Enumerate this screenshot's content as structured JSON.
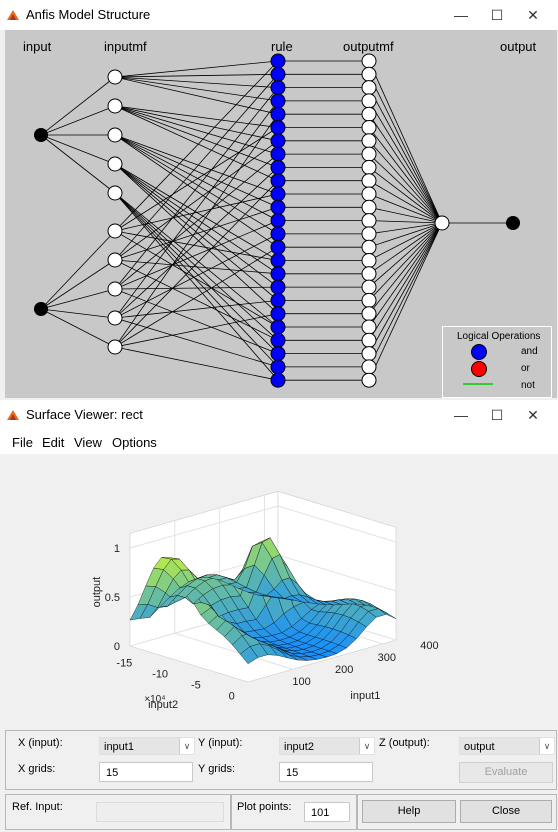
{
  "anfis": {
    "title": "Anfis Model Structure",
    "col_input": "input",
    "col_inputmf": "inputmf",
    "col_rule": "rule",
    "col_outputmf": "outputmf",
    "col_output": "output",
    "legend": {
      "title": "Logical Operations",
      "and": "and",
      "or": "or",
      "not": "not"
    },
    "structure": {
      "inputs": 2,
      "inputmf_per_input": 5,
      "rules": 25,
      "outputmf": 25,
      "outputs": 1
    },
    "colors": {
      "rule_node": "#0000ff",
      "or_node": "#ff0000",
      "not_line": "#33cc33",
      "background": "#c8c8c8"
    }
  },
  "surface": {
    "title": "Surface Viewer: rect",
    "menu": [
      "File",
      "Edit",
      "View",
      "Options"
    ],
    "x_input_label": "X (input):",
    "x_input_value": "input1",
    "y_input_label": "Y (input):",
    "y_input_value": "input2",
    "z_output_label": "Z (output):",
    "z_output_value": "output",
    "x_grids_label": "X grids:",
    "x_grids_value": "15",
    "y_grids_label": "Y grids:",
    "y_grids_value": "15",
    "evaluate_label": "Evaluate",
    "ref_input_label": "Ref. Input:",
    "ref_input_value": "",
    "plot_points_label": "Plot points:",
    "plot_points_value": "101",
    "help_label": "Help",
    "close_label": "Close"
  },
  "chart_data": {
    "type": "surface",
    "xlabel": "input1",
    "ylabel": "input2",
    "zlabel": "output",
    "x_ticks": [
      "100",
      "200",
      "300",
      "400"
    ],
    "y_ticks": [
      "0",
      "-5",
      "-10",
      "-15"
    ],
    "y_multiplier": "×10⁴",
    "z_ticks": [
      "0",
      "0.5",
      "1"
    ],
    "zlim": [
      0,
      1.1
    ],
    "grid": 15,
    "colormap": "cool-green (blue to cyan to green)"
  }
}
